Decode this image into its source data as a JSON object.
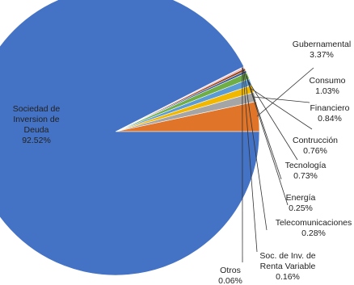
{
  "chart_data": {
    "type": "pie",
    "title": "",
    "start_angle_deg": 0,
    "direction": "counterclockwise",
    "slices": [
      {
        "label": "Gubernamental",
        "value": 3.37,
        "display": "3.37%",
        "color": "#E07428"
      },
      {
        "label": "Consumo",
        "value": 1.03,
        "display": "1.03%",
        "color": "#A5A5A5"
      },
      {
        "label": "Financiero",
        "value": 0.84,
        "display": "0.84%",
        "color": "#F2B800"
      },
      {
        "label": "Contrucción",
        "value": 0.76,
        "display": "0.76%",
        "color": "#5B9BD5"
      },
      {
        "label": "Tecnología",
        "value": 0.73,
        "display": "0.73%",
        "color": "#6FAE47"
      },
      {
        "label": "Energía",
        "value": 0.25,
        "display": "0.25%",
        "color": "#2E5597"
      },
      {
        "label": "Telecomunicaciones",
        "value": 0.28,
        "display": "0.28%",
        "color": "#9E4A1E"
      },
      {
        "label": "Soc. de Inv. de Renta Variable",
        "value": 0.16,
        "display": "0.16%",
        "color": "#E8A0B4"
      },
      {
        "label": "Otros",
        "value": 0.06,
        "display": "0.06%",
        "color": "#C0C0C0"
      },
      {
        "label": "Sociedad de Inversion de Deuda",
        "value": 92.52,
        "display": "92.52%",
        "color": "#4472C4"
      }
    ],
    "legend": "none"
  }
}
